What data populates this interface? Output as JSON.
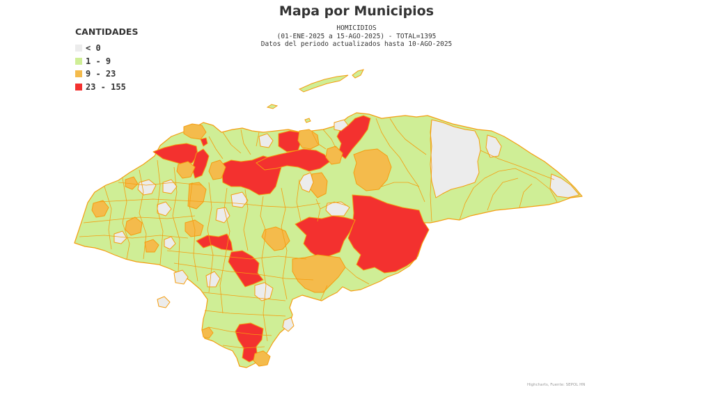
{
  "title": "Mapa por Municipios",
  "subtitle": {
    "line1": "HOMICIDIOS",
    "line2": "(01-ENE-2025 a 15-AGO-2025) - TOTAL=1395",
    "line3": "Datos del periodo actualizados hasta 10-AGO-2025"
  },
  "legend": {
    "title": "CANTIDADES",
    "items": [
      {
        "label": "< 0",
        "color": "#ececec"
      },
      {
        "label": "1 - 9",
        "color": "#cfee96"
      },
      {
        "label": "9 - 23",
        "color": "#f4bb4c"
      },
      {
        "label": "23 - 155",
        "color": "#f3312f"
      }
    ]
  },
  "map": {
    "border_color": "#f59d0f",
    "land_color": "#cfee96"
  },
  "credits": "Highcharts, Fuente: SEPOL HN"
}
